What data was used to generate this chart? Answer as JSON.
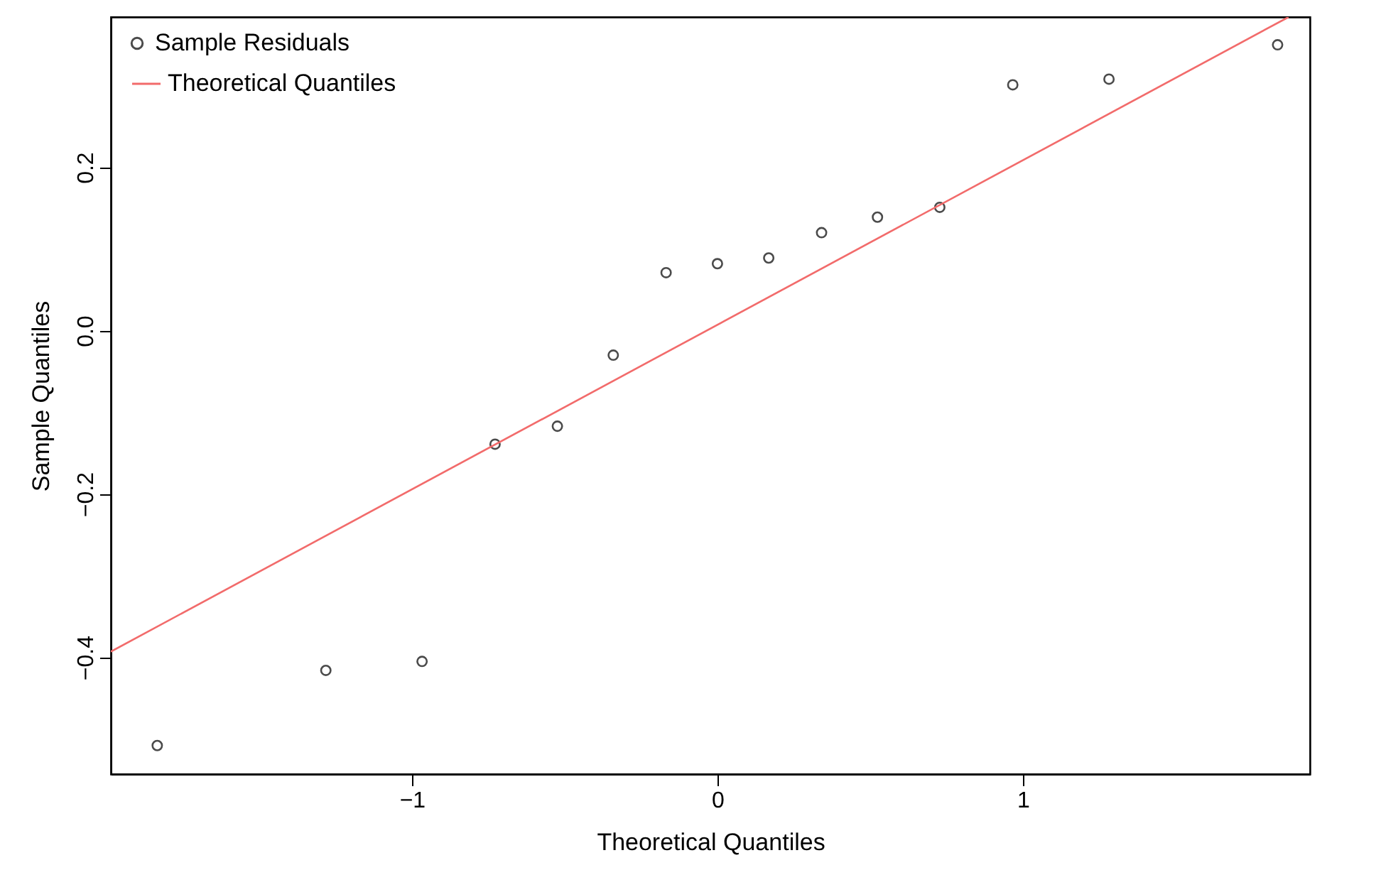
{
  "chart_data": {
    "type": "scatter",
    "xlabel": "Theoretical Quantiles",
    "ylabel": "Sample Quantiles",
    "xlim": [
      -1.986,
      1.94
    ],
    "ylim": [
      -0.543,
      0.384
    ],
    "xticks": [
      {
        "value": -1,
        "label": "−1"
      },
      0,
      1
    ],
    "yticks": [
      {
        "value": -0.4,
        "label": "−0.4"
      },
      {
        "value": -0.2,
        "label": "−0.2"
      },
      {
        "value": 0,
        "label": "0.0"
      },
      0.2
    ],
    "grid": false,
    "legend": "top left",
    "series": [
      {
        "name": "Sample Residuals",
        "marker": "circle",
        "color": "#000000",
        "x": [
          -1.834,
          -1.282,
          -0.967,
          -0.728,
          -0.524,
          -0.341,
          -0.168,
          0,
          0.168,
          0.341,
          0.524,
          0.728,
          0.967,
          1.282,
          1.834
        ],
        "values": [
          -0.508,
          -0.416,
          -0.405,
          -0.139,
          -0.117,
          -0.03,
          0.071,
          0.082,
          0.089,
          0.12,
          0.139,
          0.151,
          0.301,
          0.308,
          0.35
        ]
      },
      {
        "name": "Theoretical Quantiles",
        "type": "line",
        "line_style": "solid",
        "color": "#f26b6b",
        "x": [
          -1.986,
          1.87
        ],
        "values": [
          -0.393,
          0.384
        ]
      }
    ]
  }
}
